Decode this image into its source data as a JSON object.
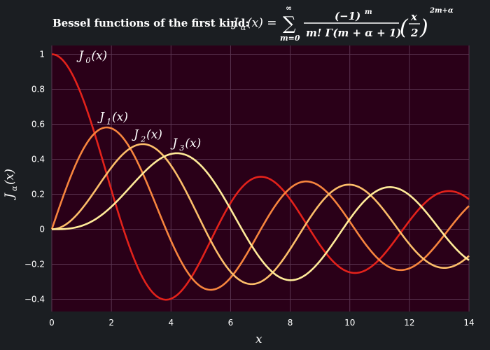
{
  "chart_data": {
    "type": "line",
    "title": {
      "prefix": "Bessel functions of the first kind:",
      "lhs": "J",
      "lhs_sub": "α",
      "lhs_arg": "(x) =",
      "sum_top": "∞",
      "sum_symbol": "∑",
      "sum_bottom": "m=0",
      "numerator": "(−1)",
      "numerator_exp": "m",
      "denominator": "m! Γ(m + α + 1)",
      "frac_num": "x",
      "frac_den": "2",
      "paren_open": "(",
      "paren_close": ")",
      "power": "2m+α"
    },
    "xlabel": "x",
    "ylabel": {
      "main": "J",
      "sub": "α",
      "arg": "(x)"
    },
    "xlim": [
      0,
      14
    ],
    "ylim": [
      -0.47,
      1.05
    ],
    "xticks": [
      0,
      2,
      4,
      6,
      8,
      10,
      12,
      14
    ],
    "yticks": [
      -0.4,
      -0.2,
      0,
      0.2,
      0.4,
      0.6,
      0.8,
      1
    ],
    "ytick_labels": [
      "−0.4",
      "−0.2",
      "0",
      "0.2",
      "0.4",
      "0.6",
      "0.8",
      "1"
    ],
    "grid": true,
    "x_samples": 281,
    "series": [
      {
        "name": "J0(x)",
        "order": 0,
        "color": "#e3221b",
        "label_main": "J",
        "label_sub": "0",
        "label_arg": "(x)",
        "label_at": [
          0.9,
          0.97
        ]
      },
      {
        "name": "J1(x)",
        "order": 1,
        "color": "#f7853e",
        "label_main": "J",
        "label_sub": "1",
        "label_arg": "(x)",
        "label_at": [
          1.6,
          0.62
        ]
      },
      {
        "name": "J2(x)",
        "order": 2,
        "color": "#fcbe6a",
        "label_main": "J",
        "label_sub": "2",
        "label_arg": "(x)",
        "label_at": [
          2.75,
          0.52
        ]
      },
      {
        "name": "J3(x)",
        "order": 3,
        "color": "#ffeb99",
        "label_main": "J",
        "label_sub": "3",
        "label_arg": "(x)",
        "label_at": [
          4.05,
          0.47
        ]
      }
    ],
    "colors": {
      "page_background": "#1b1e22",
      "plot_background": "#2a0018",
      "grid": "#5a3450",
      "text": "#ffffff"
    }
  }
}
